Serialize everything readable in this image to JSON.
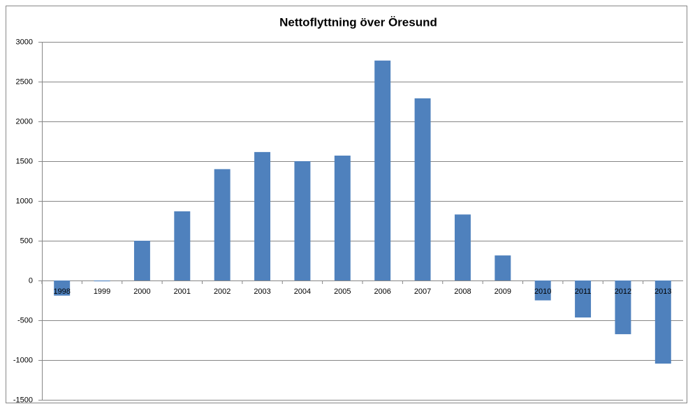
{
  "chart_data": {
    "type": "bar",
    "title": "Nettoflyttning över Öresund",
    "categories": [
      "1998",
      "1999",
      "2000",
      "2001",
      "2002",
      "2003",
      "2004",
      "2005",
      "2006",
      "2007",
      "2008",
      "2009",
      "2010",
      "2011",
      "2012",
      "2013"
    ],
    "values": [
      -190,
      -10,
      500,
      870,
      1400,
      1615,
      1500,
      1570,
      2765,
      2290,
      830,
      315,
      -250,
      -465,
      -675,
      -1045
    ],
    "color": "#4f81bd",
    "ylim": [
      -1500,
      3000
    ],
    "yticks": [
      -1500,
      -1000,
      -500,
      0,
      500,
      1000,
      1500,
      2000,
      2500,
      3000
    ],
    "grid": true
  }
}
